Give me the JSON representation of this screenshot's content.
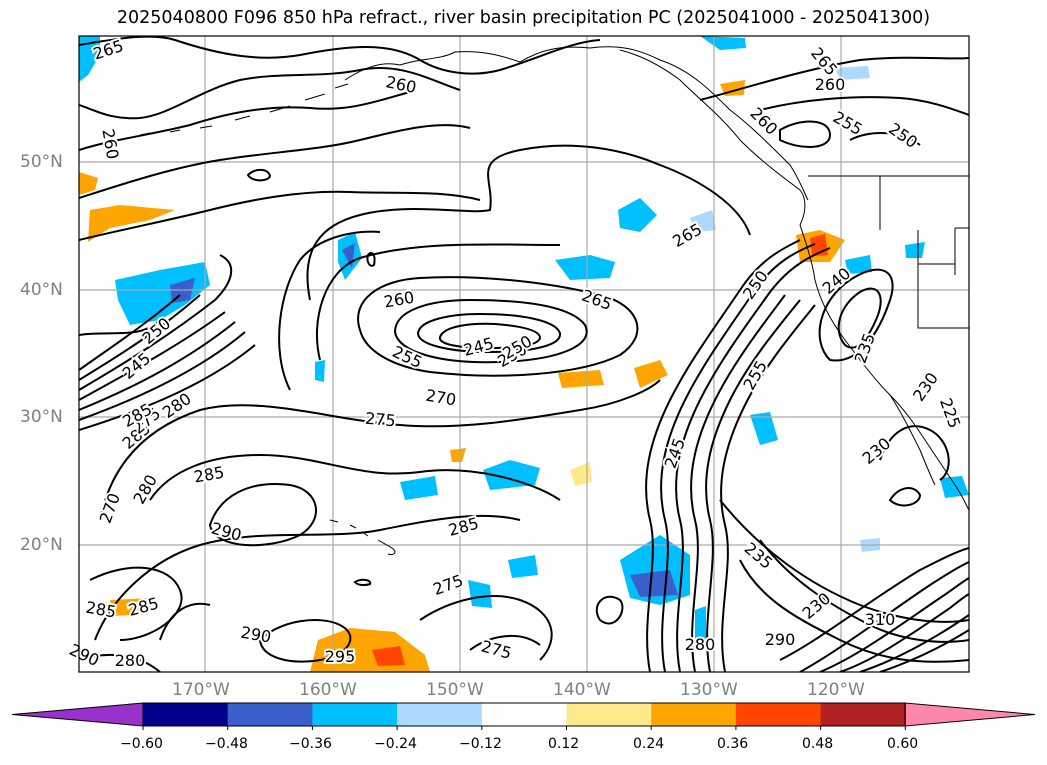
{
  "title": "2025040800 F096 850 hPa refract., river basin precipitation PC (2025041000 - 2025041300)",
  "map": {
    "lat_ticks": [
      "50°N",
      "40°N",
      "30°N",
      "20°N"
    ],
    "lon_ticks": [
      "170°W",
      "160°W",
      "150°W",
      "140°W",
      "130°W",
      "120°W"
    ],
    "contour_labels": [
      "265",
      "260",
      "260",
      "260",
      "265",
      "260",
      "255",
      "250",
      "260",
      "265",
      "245",
      "250",
      "255",
      "270",
      "275",
      "285",
      "280",
      "275",
      "285",
      "280",
      "270",
      "290",
      "285",
      "275",
      "285",
      "285",
      "290",
      "280",
      "290",
      "295",
      "275",
      "245",
      "250",
      "250",
      "240",
      "235",
      "230",
      "230",
      "235",
      "230",
      "225",
      "265",
      "285",
      "280",
      "290",
      "310",
      "250",
      "255",
      "245"
    ],
    "contour_line_color": "#000000",
    "coastline_color": "#000000",
    "grid_color": "#a9a9a9"
  },
  "colorbar": {
    "tick_labels": [
      "−0.60",
      "−0.48",
      "−0.36",
      "−0.24",
      "−0.12",
      "0.12",
      "0.24",
      "0.36",
      "0.48",
      "0.60"
    ],
    "colors": [
      "#9932cc",
      "#00008b",
      "#3a5fcd",
      "#00bfff",
      "#add8ff",
      "#ffffff",
      "#ffe98a",
      "#ffa500",
      "#ff4500",
      "#b22222",
      "#ff88aa"
    ]
  }
}
